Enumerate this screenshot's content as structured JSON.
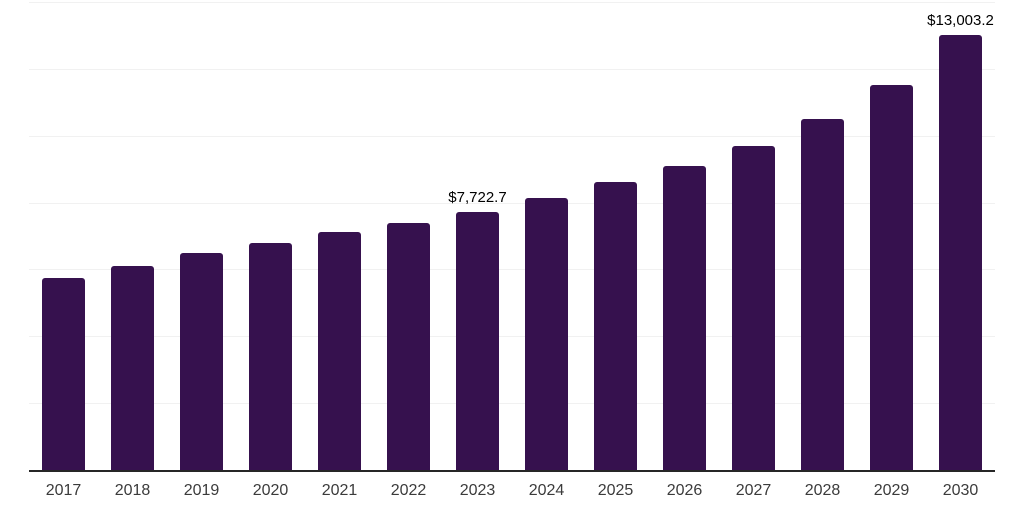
{
  "chart_data": {
    "type": "bar",
    "title": "",
    "xlabel": "",
    "ylabel": "",
    "categories": [
      "2017",
      "2018",
      "2019",
      "2020",
      "2021",
      "2022",
      "2023",
      "2024",
      "2025",
      "2026",
      "2027",
      "2028",
      "2029",
      "2030"
    ],
    "values": [
      5740,
      6100,
      6490,
      6790,
      7120,
      7390,
      7722.7,
      8140,
      8620,
      9100,
      9700,
      10490,
      11510,
      13003.2
    ],
    "data_labels": {
      "2023": "$7,722.7",
      "2030": "$13,003.2"
    },
    "ylim": [
      0,
      14000
    ],
    "gridline_step": 2000,
    "grid": "horizontal-only",
    "legend": "none",
    "y_axis_tick_labels": "none",
    "colors": {
      "bar": "#36114e",
      "gridline": "#f1f1f1",
      "axis_line": "#262626",
      "tick_label": "#3b3b3b",
      "data_label": "#000000",
      "background": "#ffffff"
    }
  }
}
